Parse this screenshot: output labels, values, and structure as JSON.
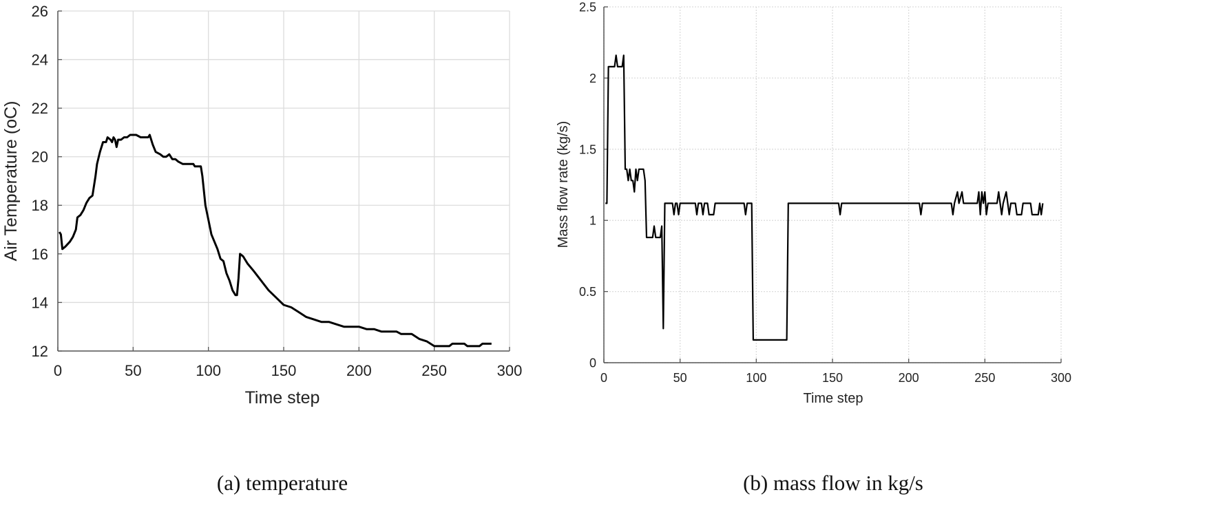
{
  "chart_data": [
    {
      "type": "line",
      "title": "",
      "caption": "(a) temperature",
      "xlabel": "Time step",
      "ylabel": "Air Temperature (oC)",
      "xlim": [
        0,
        300
      ],
      "ylim": [
        12,
        26
      ],
      "xticks": [
        0,
        50,
        100,
        150,
        200,
        250,
        300
      ],
      "yticks": [
        12,
        14,
        16,
        18,
        20,
        22,
        24,
        26
      ],
      "grid": true,
      "series": [
        {
          "name": "temperature",
          "color": "#000000",
          "points": [
            [
              1,
              16.9
            ],
            [
              2,
              16.8
            ],
            [
              3,
              16.2
            ],
            [
              5,
              16.3
            ],
            [
              8,
              16.5
            ],
            [
              10,
              16.7
            ],
            [
              12,
              17.0
            ],
            [
              13,
              17.5
            ],
            [
              15,
              17.6
            ],
            [
              17,
              17.8
            ],
            [
              19,
              18.1
            ],
            [
              21,
              18.3
            ],
            [
              23,
              18.4
            ],
            [
              25,
              19.2
            ],
            [
              26,
              19.7
            ],
            [
              28,
              20.2
            ],
            [
              30,
              20.6
            ],
            [
              32,
              20.6
            ],
            [
              33,
              20.8
            ],
            [
              35,
              20.7
            ],
            [
              36,
              20.6
            ],
            [
              37,
              20.8
            ],
            [
              38,
              20.7
            ],
            [
              39,
              20.4
            ],
            [
              40,
              20.7
            ],
            [
              42,
              20.7
            ],
            [
              44,
              20.8
            ],
            [
              46,
              20.8
            ],
            [
              48,
              20.9
            ],
            [
              52,
              20.9
            ],
            [
              55,
              20.8
            ],
            [
              60,
              20.8
            ],
            [
              61,
              20.9
            ],
            [
              63,
              20.5
            ],
            [
              65,
              20.2
            ],
            [
              68,
              20.1
            ],
            [
              70,
              20.0
            ],
            [
              72,
              20.0
            ],
            [
              74,
              20.1
            ],
            [
              76,
              19.9
            ],
            [
              78,
              19.9
            ],
            [
              80,
              19.8
            ],
            [
              83,
              19.7
            ],
            [
              90,
              19.7
            ],
            [
              91,
              19.6
            ],
            [
              95,
              19.6
            ],
            [
              96,
              19.2
            ],
            [
              98,
              18.0
            ],
            [
              100,
              17.4
            ],
            [
              102,
              16.8
            ],
            [
              104,
              16.5
            ],
            [
              106,
              16.2
            ],
            [
              108,
              15.8
            ],
            [
              110,
              15.7
            ],
            [
              112,
              15.2
            ],
            [
              114,
              14.9
            ],
            [
              116,
              14.5
            ],
            [
              118,
              14.3
            ],
            [
              119,
              14.3
            ],
            [
              120,
              15.0
            ],
            [
              121,
              16.0
            ],
            [
              123,
              15.9
            ],
            [
              126,
              15.6
            ],
            [
              130,
              15.3
            ],
            [
              135,
              14.9
            ],
            [
              140,
              14.5
            ],
            [
              145,
              14.2
            ],
            [
              150,
              13.9
            ],
            [
              155,
              13.8
            ],
            [
              160,
              13.6
            ],
            [
              165,
              13.4
            ],
            [
              170,
              13.3
            ],
            [
              175,
              13.2
            ],
            [
              180,
              13.2
            ],
            [
              185,
              13.1
            ],
            [
              190,
              13.0
            ],
            [
              200,
              13.0
            ],
            [
              205,
              12.9
            ],
            [
              210,
              12.9
            ],
            [
              215,
              12.8
            ],
            [
              225,
              12.8
            ],
            [
              228,
              12.7
            ],
            [
              235,
              12.7
            ],
            [
              240,
              12.5
            ],
            [
              245,
              12.4
            ],
            [
              250,
              12.2
            ],
            [
              260,
              12.2
            ],
            [
              262,
              12.3
            ],
            [
              270,
              12.3
            ],
            [
              272,
              12.2
            ],
            [
              280,
              12.2
            ],
            [
              282,
              12.3
            ],
            [
              288,
              12.3
            ]
          ]
        }
      ]
    },
    {
      "type": "line",
      "title": "",
      "caption": "(b) mass flow in kg/s",
      "xlabel": "Time step",
      "ylabel": "Mass flow rate (kg/s)",
      "xlim": [
        0,
        300
      ],
      "ylim": [
        0,
        2.5
      ],
      "xticks": [
        0,
        50,
        100,
        150,
        200,
        250,
        300
      ],
      "yticks": [
        0,
        0.5,
        1,
        1.5,
        2,
        2.5
      ],
      "grid": true,
      "series": [
        {
          "name": "mass flow",
          "color": "#000000",
          "points": [
            [
              1,
              1.12
            ],
            [
              2,
              1.12
            ],
            [
              3,
              2.08
            ],
            [
              7,
              2.08
            ],
            [
              8,
              2.16
            ],
            [
              9,
              2.08
            ],
            [
              12,
              2.08
            ],
            [
              13,
              2.16
            ],
            [
              14,
              1.36
            ],
            [
              15,
              1.36
            ],
            [
              16,
              1.28
            ],
            [
              17,
              1.36
            ],
            [
              18,
              1.28
            ],
            [
              19,
              1.28
            ],
            [
              20,
              1.2
            ],
            [
              21,
              1.36
            ],
            [
              22,
              1.28
            ],
            [
              23,
              1.36
            ],
            [
              26,
              1.36
            ],
            [
              27,
              1.28
            ],
            [
              28,
              0.88
            ],
            [
              32,
              0.88
            ],
            [
              33,
              0.96
            ],
            [
              34,
              0.88
            ],
            [
              37,
              0.88
            ],
            [
              38,
              0.96
            ],
            [
              39,
              0.24
            ],
            [
              40,
              1.12
            ],
            [
              45,
              1.12
            ],
            [
              46,
              1.04
            ],
            [
              47,
              1.12
            ],
            [
              48,
              1.12
            ],
            [
              49,
              1.04
            ],
            [
              50,
              1.12
            ],
            [
              60,
              1.12
            ],
            [
              61,
              1.04
            ],
            [
              62,
              1.12
            ],
            [
              64,
              1.12
            ],
            [
              65,
              1.04
            ],
            [
              66,
              1.12
            ],
            [
              68,
              1.12
            ],
            [
              69,
              1.04
            ],
            [
              72,
              1.04
            ],
            [
              73,
              1.12
            ],
            [
              92,
              1.12
            ],
            [
              93,
              1.04
            ],
            [
              94,
              1.12
            ],
            [
              97,
              1.12
            ],
            [
              98,
              0.16
            ],
            [
              120,
              0.16
            ],
            [
              121,
              1.12
            ],
            [
              154,
              1.12
            ],
            [
              155,
              1.04
            ],
            [
              156,
              1.12
            ],
            [
              207,
              1.12
            ],
            [
              208,
              1.04
            ],
            [
              209,
              1.12
            ],
            [
              228,
              1.12
            ],
            [
              229,
              1.04
            ],
            [
              230,
              1.12
            ],
            [
              232,
              1.2
            ],
            [
              233,
              1.12
            ],
            [
              235,
              1.2
            ],
            [
              236,
              1.12
            ],
            [
              245,
              1.12
            ],
            [
              246,
              1.2
            ],
            [
              247,
              1.04
            ],
            [
              248,
              1.2
            ],
            [
              249,
              1.12
            ],
            [
              250,
              1.2
            ],
            [
              251,
              1.04
            ],
            [
              252,
              1.12
            ],
            [
              258,
              1.12
            ],
            [
              259,
              1.2
            ],
            [
              260,
              1.12
            ],
            [
              261,
              1.04
            ],
            [
              262,
              1.12
            ],
            [
              264,
              1.2
            ],
            [
              265,
              1.12
            ],
            [
              266,
              1.04
            ],
            [
              267,
              1.12
            ],
            [
              270,
              1.12
            ],
            [
              271,
              1.04
            ],
            [
              274,
              1.04
            ],
            [
              275,
              1.12
            ],
            [
              280,
              1.12
            ],
            [
              281,
              1.04
            ],
            [
              285,
              1.04
            ],
            [
              286,
              1.12
            ],
            [
              287,
              1.04
            ],
            [
              288,
              1.12
            ]
          ]
        }
      ]
    }
  ]
}
